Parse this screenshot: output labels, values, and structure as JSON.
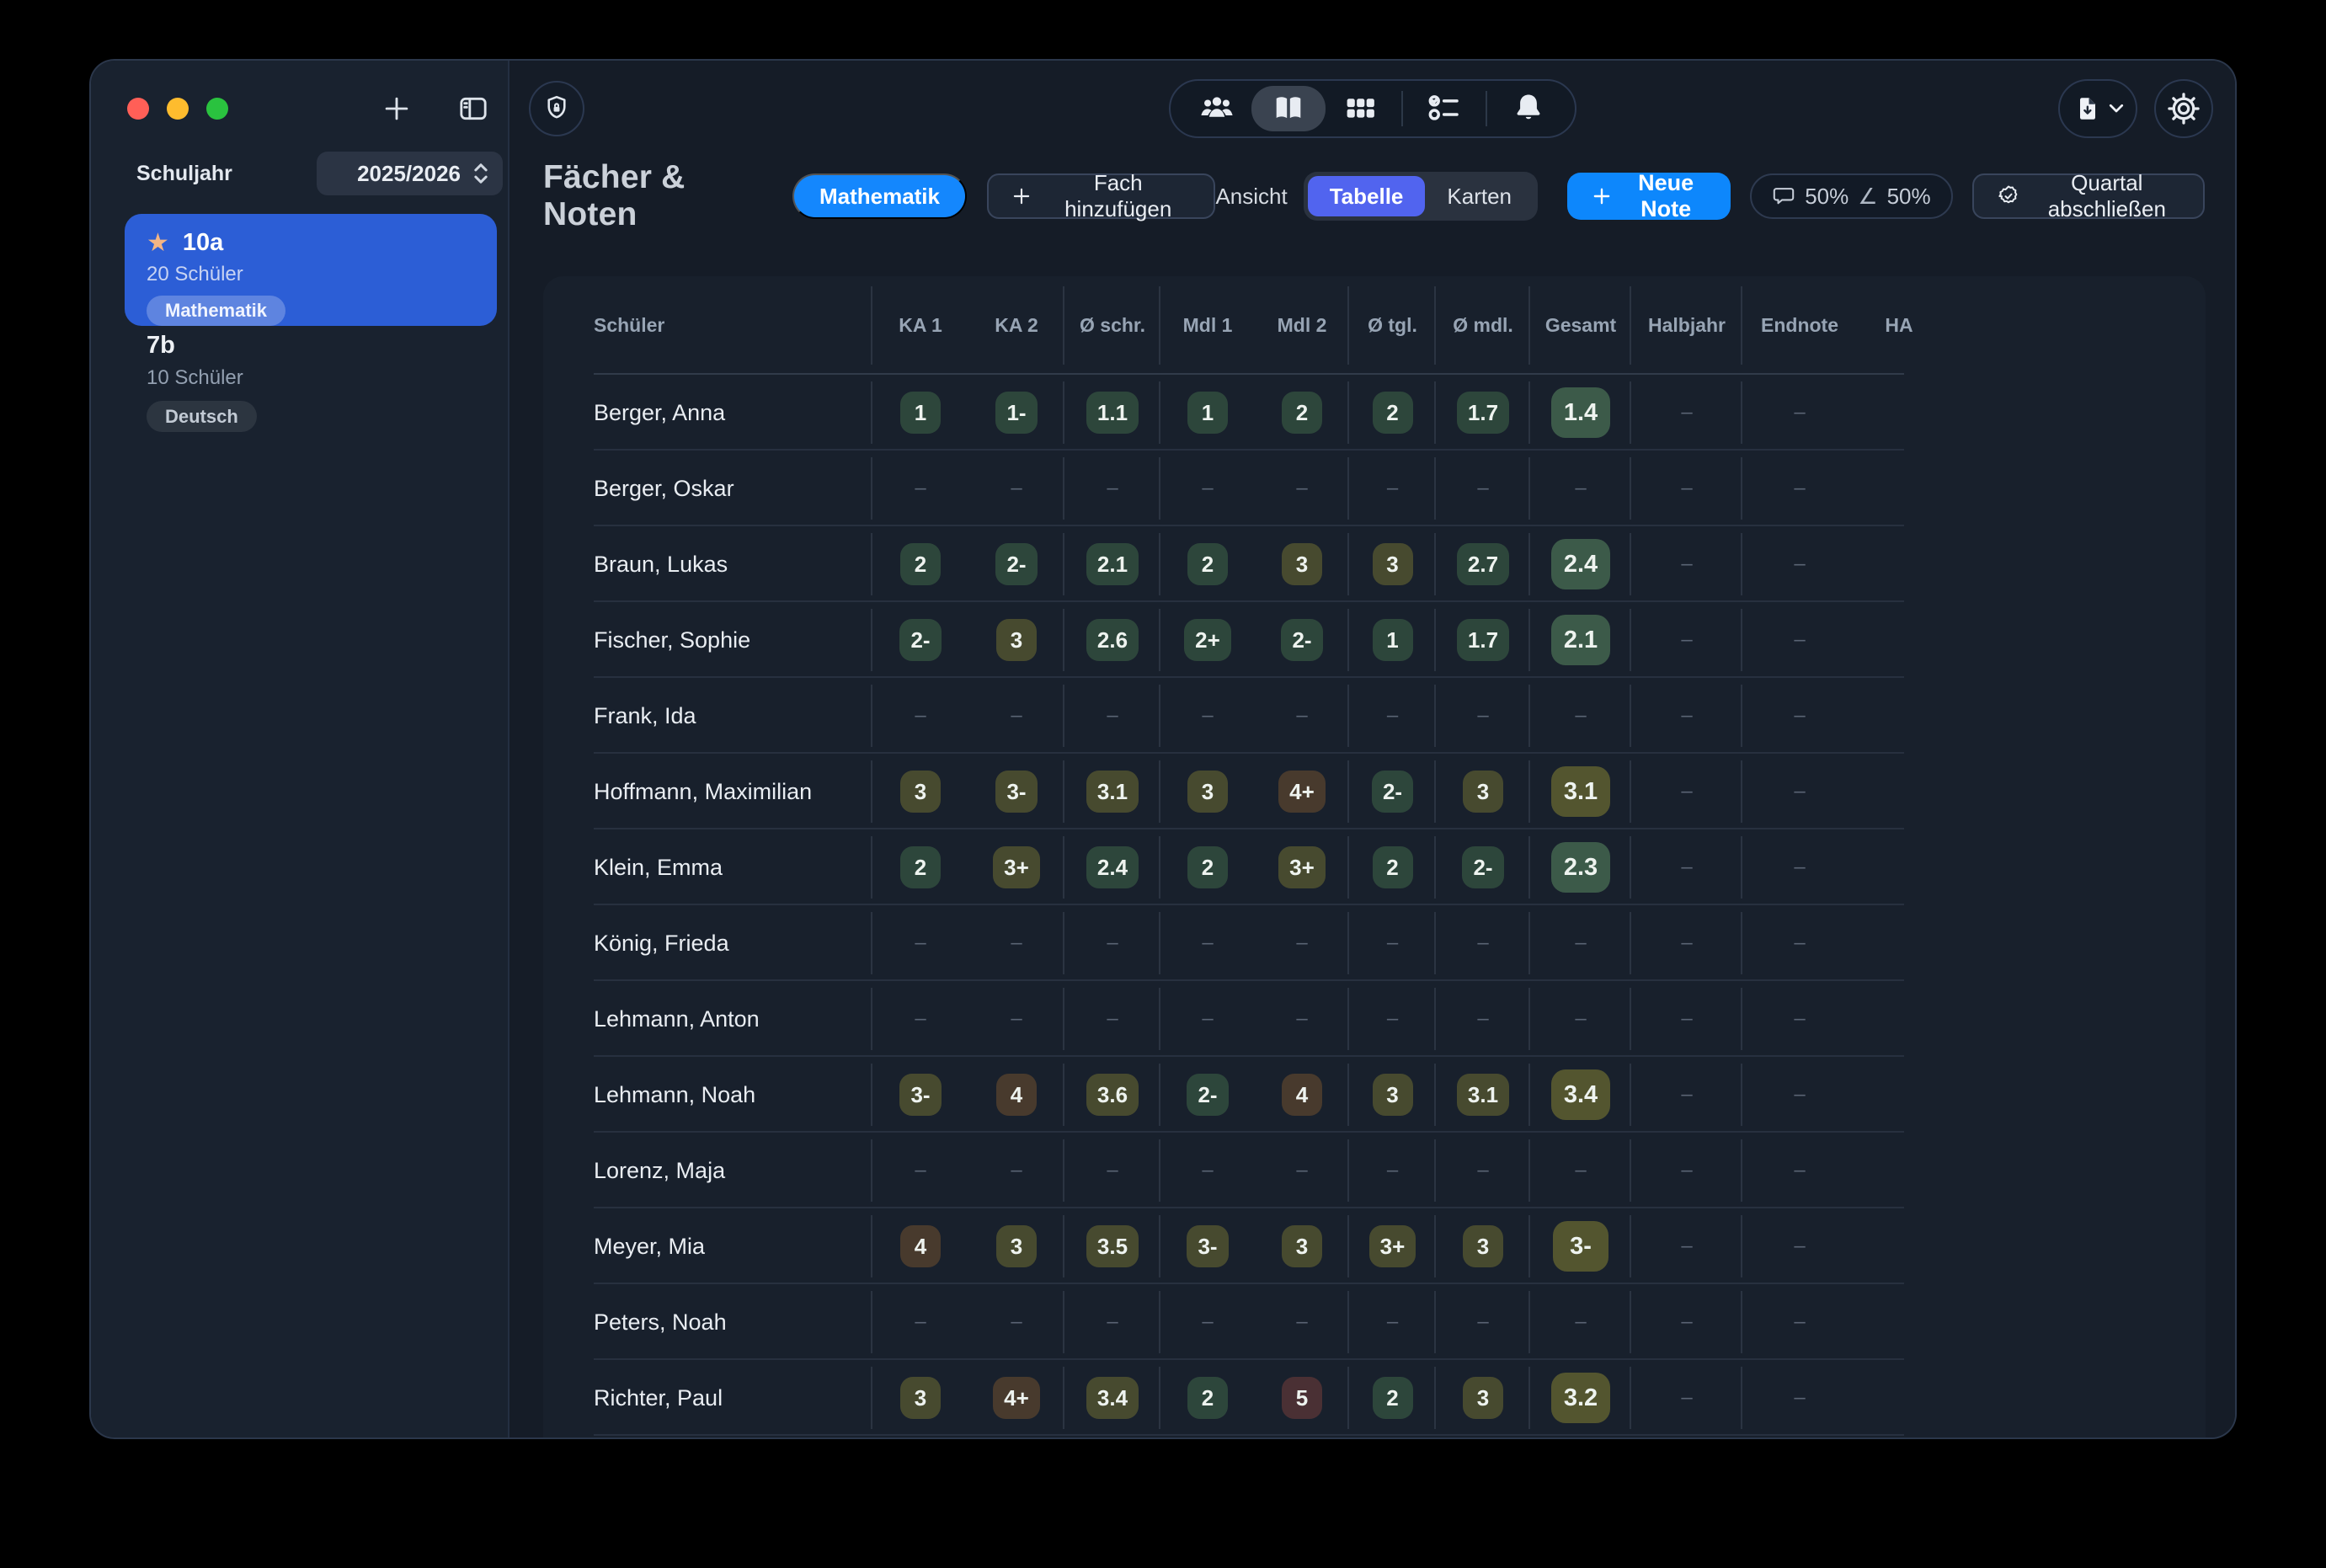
{
  "palette": {
    "window_bg": "#151c27",
    "sidebar_bg": "#19222f",
    "panel_bg": "#18202c",
    "accent_blue": "#0d87fc",
    "selected_card_blue": "#2c5ed6",
    "segment_blue": "#5164ef",
    "badge_blue": "#1487fd",
    "chip_green": "#2d463b",
    "chip_green_strong": "#3c5a49",
    "chip_olive": "#474a2f",
    "chip_olive_strong": "#53552f",
    "chip_brown": "#483a2d",
    "chip_red": "#4a3034",
    "traffic_red": "#ff5f57",
    "traffic_yellow": "#febc2e",
    "traffic_green": "#2ac23f",
    "star": "#f3b584",
    "text": "#e9edf2",
    "muted": "#97a4b4",
    "dash": "#5a6474"
  },
  "icons": {
    "star": "★",
    "angle": "∠",
    "toolbar": [
      "people-icon",
      "book-icon",
      "grid-icon",
      "checklist-icon",
      "bell-icon"
    ],
    "left": [
      "plus-icon",
      "sidebar-toggle-icon",
      "shield-lock-icon"
    ],
    "right": [
      "file-download-icon",
      "chevron-down-icon",
      "gear-icon"
    ]
  },
  "sidebar": {
    "year_label": "Schuljahr",
    "year_value": "2025/2026",
    "classes": [
      {
        "name": "10a",
        "students": "20 Schüler",
        "subject": "Mathematik",
        "selected": true,
        "starred": true
      },
      {
        "name": "7b",
        "students": "10 Schüler",
        "subject": "Deutsch",
        "selected": false,
        "starred": false
      }
    ]
  },
  "header": {
    "title": "Fächer & Noten",
    "subject_badge": "Mathematik",
    "add_subject": "Fach hinzufügen",
    "view_label": "Ansicht",
    "view_table": "Tabelle",
    "view_cards": "Karten",
    "new_grade": "Neue Note",
    "weight_written": "50%",
    "weight_oral": "50%",
    "close_quarter": "Quartal abschließen"
  },
  "table": {
    "columns": [
      "Schüler",
      "KA 1",
      "KA 2",
      "Ø schr.",
      "Mdl 1",
      "Mdl 2",
      "Ø tgl.",
      "Ø mdl.",
      "Gesamt",
      "Halbjahr",
      "Endnote",
      "HA"
    ],
    "separator_after_columns": [
      0,
      2,
      3,
      5,
      6,
      7,
      8,
      9
    ],
    "gesamt_column_index": 8,
    "empty_placeholder": "–",
    "rows": [
      {
        "name": "Berger, Anna",
        "cells": [
          "1",
          "1-",
          "1.1",
          "1",
          "2",
          "2",
          "1.7",
          "1.4",
          "–",
          "–",
          ""
        ]
      },
      {
        "name": "Berger, Oskar",
        "cells": [
          "–",
          "–",
          "–",
          "–",
          "–",
          "–",
          "–",
          "–",
          "–",
          "–",
          ""
        ]
      },
      {
        "name": "Braun, Lukas",
        "cells": [
          "2",
          "2-",
          "2.1",
          "2",
          "3",
          "3",
          "2.7",
          "2.4",
          "–",
          "–",
          ""
        ]
      },
      {
        "name": "Fischer, Sophie",
        "cells": [
          "2-",
          "3",
          "2.6",
          "2+",
          "2-",
          "1",
          "1.7",
          "2.1",
          "–",
          "–",
          ""
        ]
      },
      {
        "name": "Frank, Ida",
        "cells": [
          "–",
          "–",
          "–",
          "–",
          "–",
          "–",
          "–",
          "–",
          "–",
          "–",
          ""
        ]
      },
      {
        "name": "Hoffmann, Maximilian",
        "cells": [
          "3",
          "3-",
          "3.1",
          "3",
          "4+",
          "2-",
          "3",
          "3.1",
          "–",
          "–",
          ""
        ]
      },
      {
        "name": "Klein, Emma",
        "cells": [
          "2",
          "3+",
          "2.4",
          "2",
          "3+",
          "2",
          "2-",
          "2.3",
          "–",
          "–",
          ""
        ]
      },
      {
        "name": "König, Frieda",
        "cells": [
          "–",
          "–",
          "–",
          "–",
          "–",
          "–",
          "–",
          "–",
          "–",
          "–",
          ""
        ]
      },
      {
        "name": "Lehmann, Anton",
        "cells": [
          "–",
          "–",
          "–",
          "–",
          "–",
          "–",
          "–",
          "–",
          "–",
          "–",
          ""
        ]
      },
      {
        "name": "Lehmann, Noah",
        "cells": [
          "3-",
          "4",
          "3.6",
          "2-",
          "4",
          "3",
          "3.1",
          "3.4",
          "–",
          "–",
          ""
        ]
      },
      {
        "name": "Lorenz, Maja",
        "cells": [
          "–",
          "–",
          "–",
          "–",
          "–",
          "–",
          "–",
          "–",
          "–",
          "–",
          ""
        ]
      },
      {
        "name": "Meyer, Mia",
        "cells": [
          "4",
          "3",
          "3.5",
          "3-",
          "3",
          "3+",
          "3",
          "3-",
          "–",
          "–",
          ""
        ]
      },
      {
        "name": "Peters, Noah",
        "cells": [
          "–",
          "–",
          "–",
          "–",
          "–",
          "–",
          "–",
          "–",
          "–",
          "–",
          ""
        ]
      },
      {
        "name": "Richter, Paul",
        "cells": [
          "3",
          "4+",
          "3.4",
          "2",
          "5",
          "2",
          "3",
          "3.2",
          "–",
          "–",
          ""
        ]
      },
      {
        "name": "",
        "cells": [
          "",
          "",
          "",
          "",
          "",
          "",
          "",
          "",
          "",
          "",
          ""
        ]
      }
    ]
  }
}
